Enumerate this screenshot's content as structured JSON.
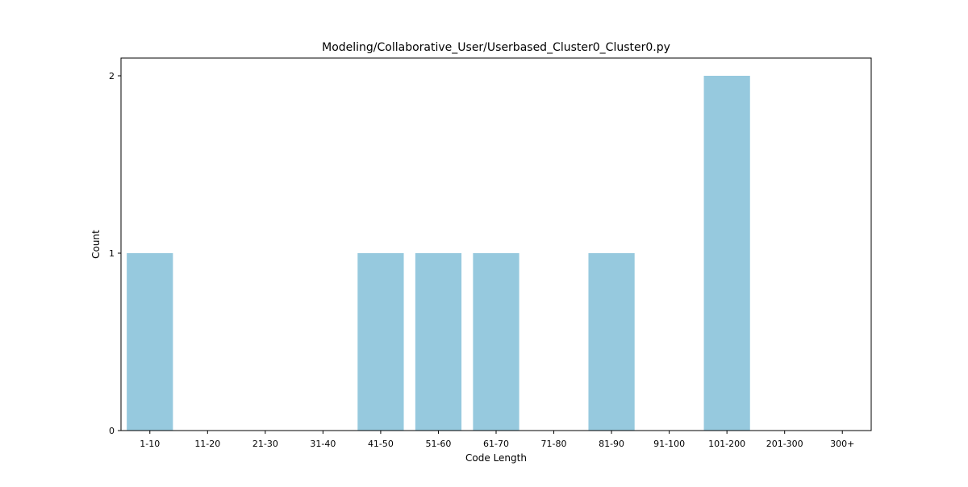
{
  "chart_data": {
    "type": "bar",
    "title": "Modeling/Collaborative_User/Userbased_Cluster0_Cluster0.py",
    "xlabel": "Code Length",
    "ylabel": "Count",
    "categories": [
      "1-10",
      "11-20",
      "21-30",
      "31-40",
      "41-50",
      "51-60",
      "61-70",
      "71-80",
      "81-90",
      "91-100",
      "101-200",
      "201-300",
      "300+"
    ],
    "values": [
      1,
      0,
      0,
      0,
      1,
      1,
      1,
      0,
      1,
      0,
      2,
      0,
      0
    ],
    "ylim": [
      0,
      2.1
    ],
    "yticks": [
      0,
      1,
      2
    ],
    "bar_color": "#96c9de",
    "grid": false,
    "legend": "none"
  }
}
